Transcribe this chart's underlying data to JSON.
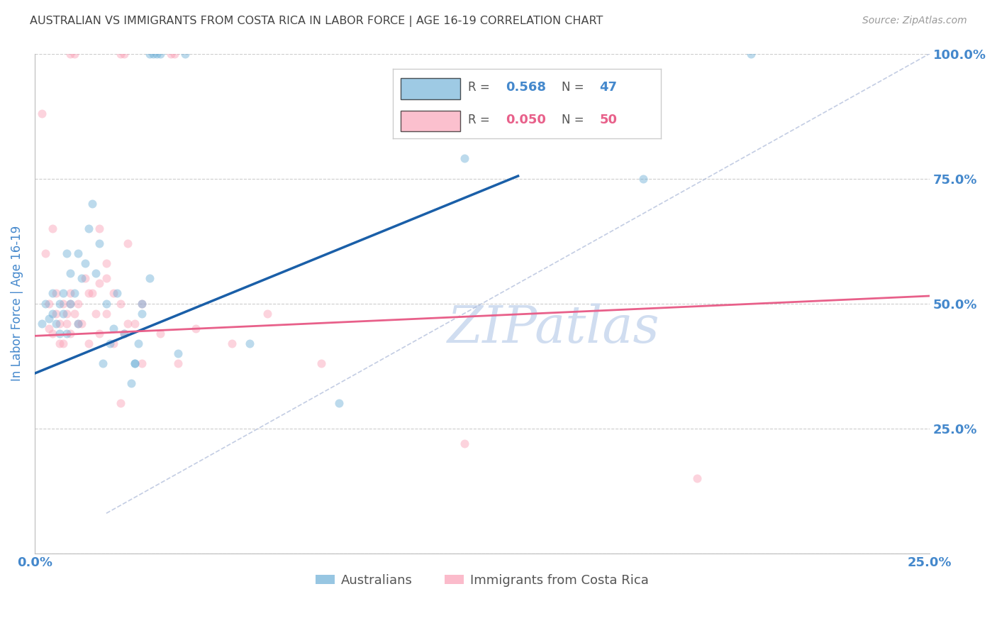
{
  "title": "AUSTRALIAN VS IMMIGRANTS FROM COSTA RICA IN LABOR FORCE | AGE 16-19 CORRELATION CHART",
  "source": "Source: ZipAtlas.com",
  "ylabel": "In Labor Force | Age 16-19",
  "xlim": [
    0.0,
    0.25
  ],
  "ylim": [
    0.0,
    1.0
  ],
  "blue_color": "#6baed6",
  "pink_color": "#fa9fb5",
  "blue_line_color": "#1a5fa8",
  "pink_line_color": "#e8608a",
  "ref_line_color": "#aab8d8",
  "tick_color": "#4488cc",
  "grid_color": "#cccccc",
  "watermark_color": "#d0ddf0",
  "legend_r1": "0.568",
  "legend_n1": "47",
  "legend_r2": "0.050",
  "legend_n2": "50",
  "blue_line_x": [
    0.0,
    0.135
  ],
  "blue_line_y": [
    0.36,
    0.755
  ],
  "pink_line_x": [
    0.0,
    0.25
  ],
  "pink_line_y": [
    0.435,
    0.515
  ],
  "ref_line_x": [
    0.02,
    0.25
  ],
  "ref_line_y": [
    0.08,
    1.0
  ],
  "blue_x": [
    0.002,
    0.003,
    0.004,
    0.005,
    0.005,
    0.006,
    0.007,
    0.007,
    0.008,
    0.008,
    0.009,
    0.009,
    0.01,
    0.01,
    0.011,
    0.012,
    0.012,
    0.013,
    0.014,
    0.015,
    0.016,
    0.017,
    0.018,
    0.019,
    0.02,
    0.021,
    0.022,
    0.023,
    0.025,
    0.027,
    0.028,
    0.029,
    0.03,
    0.032,
    0.033,
    0.034,
    0.035,
    0.04,
    0.042,
    0.06,
    0.085,
    0.12,
    0.17,
    0.2,
    0.028,
    0.03,
    0.032
  ],
  "blue_y": [
    0.46,
    0.5,
    0.47,
    0.52,
    0.48,
    0.46,
    0.5,
    0.44,
    0.48,
    0.52,
    0.44,
    0.6,
    0.56,
    0.5,
    0.52,
    0.46,
    0.6,
    0.55,
    0.58,
    0.65,
    0.7,
    0.56,
    0.62,
    0.38,
    0.5,
    0.42,
    0.45,
    0.52,
    0.44,
    0.34,
    0.38,
    0.42,
    0.48,
    1.0,
    1.0,
    1.0,
    1.0,
    0.4,
    1.0,
    0.42,
    0.3,
    0.79,
    0.75,
    1.0,
    0.38,
    0.5,
    0.55
  ],
  "pink_x": [
    0.002,
    0.003,
    0.004,
    0.004,
    0.005,
    0.006,
    0.007,
    0.008,
    0.009,
    0.01,
    0.01,
    0.011,
    0.012,
    0.013,
    0.014,
    0.015,
    0.016,
    0.017,
    0.018,
    0.02,
    0.022,
    0.024,
    0.026,
    0.028,
    0.03,
    0.035,
    0.04,
    0.045,
    0.055,
    0.065,
    0.08,
    0.12,
    0.185,
    0.005,
    0.006,
    0.007,
    0.008,
    0.009,
    0.01,
    0.012,
    0.015,
    0.018,
    0.02,
    0.025,
    0.03,
    0.018,
    0.02,
    0.022,
    0.024,
    0.026
  ],
  "pink_y": [
    0.88,
    0.6,
    0.5,
    0.45,
    0.65,
    0.48,
    0.42,
    0.5,
    0.46,
    0.44,
    0.52,
    0.48,
    0.5,
    0.46,
    0.55,
    0.42,
    0.52,
    0.48,
    0.54,
    0.48,
    0.52,
    0.5,
    0.46,
    0.46,
    0.5,
    0.44,
    0.38,
    0.45,
    0.42,
    0.48,
    0.38,
    0.22,
    0.15,
    0.44,
    0.52,
    0.46,
    0.42,
    0.48,
    0.5,
    0.46,
    0.52,
    0.44,
    0.55,
    0.44,
    0.38,
    0.65,
    0.58,
    0.42,
    0.3,
    0.62
  ],
  "pink_top_x": [
    0.01,
    0.011,
    0.024,
    0.025,
    0.038,
    0.039
  ],
  "pink_top_y": [
    1.0,
    1.0,
    1.0,
    1.0,
    1.0,
    1.0
  ],
  "marker_size": 75,
  "marker_alpha": 0.45,
  "figsize": [
    14.06,
    8.92
  ],
  "dpi": 100
}
